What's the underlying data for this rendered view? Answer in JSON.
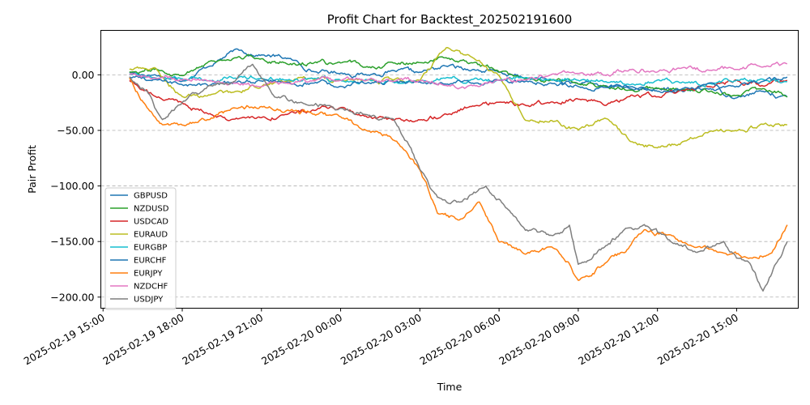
{
  "chart_data": {
    "type": "line",
    "title": "Profit Chart for Backtest_202502191600",
    "xlabel": "Time",
    "ylabel": "Pair Profit",
    "x_range": [
      "2025-02-19 14:55",
      "2025-02-20 17:20"
    ],
    "ylim": [
      -210,
      40
    ],
    "grid": "y-dashed",
    "legend_position": "lower-left",
    "x_ticks": [
      "2025-02-19 15:00",
      "2025-02-19 18:00",
      "2025-02-19 21:00",
      "2025-02-20 00:00",
      "2025-02-20 03:00",
      "2025-02-20 06:00",
      "2025-02-20 09:00",
      "2025-02-20 12:00",
      "2025-02-20 15:00"
    ],
    "y_ticks": [
      0,
      -50,
      -100,
      -150,
      -200
    ],
    "y_tick_labels": [
      "0.00",
      "−50.00",
      "−100.00",
      "−150.00",
      "−200.00"
    ],
    "series": [
      {
        "name": "GBPUSD",
        "color": "#1f77b4",
        "x": [
          "2025-02-19 16:00",
          "2025-02-19 17:00",
          "2025-02-19 18:00",
          "2025-02-19 19:00",
          "2025-02-19 20:00",
          "2025-02-19 21:00",
          "2025-02-19 22:00",
          "2025-02-19 23:00",
          "2025-02-20 00:00",
          "2025-02-20 01:00",
          "2025-02-20 02:00",
          "2025-02-20 03:00",
          "2025-02-20 04:00",
          "2025-02-20 05:00",
          "2025-02-20 06:00",
          "2025-02-20 07:00",
          "2025-02-20 08:00",
          "2025-02-20 09:00",
          "2025-02-20 10:00",
          "2025-02-20 11:00",
          "2025-02-20 12:00",
          "2025-02-20 13:00",
          "2025-02-20 14:00",
          "2025-02-20 15:00",
          "2025-02-20 16:00",
          "2025-02-20 16:55"
        ],
        "y": [
          2,
          0,
          -5,
          8,
          22,
          18,
          15,
          3,
          2,
          0,
          3,
          2,
          8,
          5,
          2,
          -3,
          -5,
          -8,
          -10,
          -12,
          -13,
          -15,
          -12,
          -20,
          -15,
          -20
        ]
      },
      {
        "name": "NZDUSD",
        "color": "#2ca02c",
        "x": [
          "2025-02-19 16:00",
          "2025-02-19 17:00",
          "2025-02-19 18:00",
          "2025-02-19 19:00",
          "2025-02-19 20:00",
          "2025-02-19 21:00",
          "2025-02-19 22:00",
          "2025-02-19 23:00",
          "2025-02-20 00:00",
          "2025-02-20 01:00",
          "2025-02-20 02:00",
          "2025-02-20 03:00",
          "2025-02-20 04:00",
          "2025-02-20 05:00",
          "2025-02-20 06:00",
          "2025-02-20 07:00",
          "2025-02-20 08:00",
          "2025-02-20 09:00",
          "2025-02-20 10:00",
          "2025-02-20 11:00",
          "2025-02-20 12:00",
          "2025-02-20 13:00",
          "2025-02-20 14:00",
          "2025-02-20 15:00",
          "2025-02-20 16:00",
          "2025-02-20 16:55"
        ],
        "y": [
          3,
          5,
          0,
          12,
          15,
          15,
          10,
          11,
          10,
          8,
          10,
          12,
          15,
          10,
          2,
          -3,
          -5,
          -8,
          -10,
          -12,
          -12,
          -14,
          -15,
          -18,
          -12,
          -20
        ]
      },
      {
        "name": "USDCAD",
        "color": "#d62728",
        "x": [
          "2025-02-19 16:00",
          "2025-02-19 17:00",
          "2025-02-19 18:00",
          "2025-02-19 19:00",
          "2025-02-19 20:00",
          "2025-02-19 21:00",
          "2025-02-19 22:00",
          "2025-02-19 23:00",
          "2025-02-20 00:00",
          "2025-02-20 01:00",
          "2025-02-20 02:00",
          "2025-02-20 03:00",
          "2025-02-20 04:00",
          "2025-02-20 05:00",
          "2025-02-20 06:00",
          "2025-02-20 07:00",
          "2025-02-20 08:00",
          "2025-02-20 09:00",
          "2025-02-20 10:00",
          "2025-02-20 11:00",
          "2025-02-20 12:00",
          "2025-02-20 13:00",
          "2025-02-20 14:00",
          "2025-02-20 15:00",
          "2025-02-20 16:00",
          "2025-02-20 16:55"
        ],
        "y": [
          -5,
          -20,
          -25,
          -35,
          -40,
          -38,
          -35,
          -32,
          -30,
          -38,
          -42,
          -40,
          -35,
          -28,
          -25,
          -28,
          -25,
          -22,
          -28,
          -18,
          -20,
          -15,
          -10,
          -5,
          -10,
          -5
        ]
      },
      {
        "name": "EURAUD",
        "color": "#bcbd22",
        "x": [
          "2025-02-19 16:00",
          "2025-02-19 17:00",
          "2025-02-19 18:00",
          "2025-02-19 19:00",
          "2025-02-19 20:00",
          "2025-02-19 21:00",
          "2025-02-19 22:00",
          "2025-02-19 23:00",
          "2025-02-20 00:00",
          "2025-02-20 01:00",
          "2025-02-20 02:00",
          "2025-02-20 03:00",
          "2025-02-20 04:00",
          "2025-02-20 05:00",
          "2025-02-20 06:00",
          "2025-02-20 07:00",
          "2025-02-20 08:00",
          "2025-02-20 09:00",
          "2025-02-20 10:00",
          "2025-02-20 11:00",
          "2025-02-20 12:00",
          "2025-02-20 13:00",
          "2025-02-20 14:00",
          "2025-02-20 15:00",
          "2025-02-20 16:00",
          "2025-02-20 16:55"
        ],
        "y": [
          5,
          5,
          -20,
          -18,
          -15,
          -10,
          -5,
          -5,
          -5,
          -5,
          -5,
          -5,
          25,
          15,
          0,
          -40,
          -40,
          -50,
          -40,
          -60,
          -65,
          -60,
          -50,
          -50,
          -45,
          -45
        ]
      },
      {
        "name": "EURGBP",
        "color": "#17becf",
        "x": [
          "2025-02-19 16:00",
          "2025-02-19 17:00",
          "2025-02-19 18:00",
          "2025-02-19 19:00",
          "2025-02-19 20:00",
          "2025-02-19 21:00",
          "2025-02-19 22:00",
          "2025-02-19 23:00",
          "2025-02-20 00:00",
          "2025-02-20 01:00",
          "2025-02-20 02:00",
          "2025-02-20 03:00",
          "2025-02-20 04:00",
          "2025-02-20 05:00",
          "2025-02-20 06:00",
          "2025-02-20 07:00",
          "2025-02-20 08:00",
          "2025-02-20 09:00",
          "2025-02-20 10:00",
          "2025-02-20 11:00",
          "2025-02-20 12:00",
          "2025-02-20 13:00",
          "2025-02-20 14:00",
          "2025-02-20 15:00",
          "2025-02-20 16:00",
          "2025-02-20 16:55"
        ],
        "y": [
          0,
          -2,
          -3,
          -5,
          -3,
          -2,
          -4,
          -3,
          -5,
          -4,
          -6,
          -5,
          -3,
          -4,
          -5,
          -3,
          -5,
          -4,
          -6,
          -8,
          -5,
          -6,
          -8,
          -5,
          -4,
          -6
        ]
      },
      {
        "name": "EURCHF",
        "color": "#1f77b4",
        "x": [
          "2025-02-19 16:00",
          "2025-02-19 17:00",
          "2025-02-19 18:00",
          "2025-02-19 19:00",
          "2025-02-19 20:00",
          "2025-02-19 21:00",
          "2025-02-19 22:00",
          "2025-02-19 23:00",
          "2025-02-20 00:00",
          "2025-02-20 01:00",
          "2025-02-20 02:00",
          "2025-02-20 03:00",
          "2025-02-20 04:00",
          "2025-02-20 05:00",
          "2025-02-20 06:00",
          "2025-02-20 07:00",
          "2025-02-20 08:00",
          "2025-02-20 09:00",
          "2025-02-20 10:00",
          "2025-02-20 11:00",
          "2025-02-20 12:00",
          "2025-02-20 13:00",
          "2025-02-20 14:00",
          "2025-02-20 15:00",
          "2025-02-20 16:00",
          "2025-02-20 16:55"
        ],
        "y": [
          -2,
          -5,
          -8,
          -10,
          -8,
          -5,
          -6,
          -8,
          -10,
          -8,
          -7,
          -6,
          -8,
          -7,
          -5,
          -6,
          -8,
          -10,
          -12,
          -10,
          -15,
          -12,
          -8,
          -10,
          -5,
          -2
        ]
      },
      {
        "name": "EURJPY",
        "color": "#ff7f0e",
        "x": [
          "2025-02-19 16:00",
          "2025-02-19 16:40",
          "2025-02-19 17:15",
          "2025-02-19 18:00",
          "2025-02-19 19:00",
          "2025-02-19 20:00",
          "2025-02-19 21:00",
          "2025-02-19 22:00",
          "2025-02-19 23:00",
          "2025-02-20 00:00",
          "2025-02-20 01:00",
          "2025-02-20 01:50",
          "2025-02-20 02:30",
          "2025-02-20 03:00",
          "2025-02-20 03:40",
          "2025-02-20 04:30",
          "2025-02-20 05:15",
          "2025-02-20 06:00",
          "2025-02-20 07:00",
          "2025-02-20 08:00",
          "2025-02-20 08:40",
          "2025-02-20 09:00",
          "2025-02-20 10:00",
          "2025-02-20 10:45",
          "2025-02-20 11:30",
          "2025-02-20 12:30",
          "2025-02-20 13:30",
          "2025-02-20 14:30",
          "2025-02-20 15:30",
          "2025-02-20 16:20",
          "2025-02-20 16:55"
        ],
        "y": [
          -3,
          -30,
          -45,
          -45,
          -40,
          -30,
          -28,
          -32,
          -35,
          -38,
          -50,
          -55,
          -70,
          -85,
          -125,
          -130,
          -115,
          -150,
          -160,
          -155,
          -170,
          -185,
          -170,
          -160,
          -140,
          -145,
          -155,
          -160,
          -165,
          -160,
          -135
        ]
      },
      {
        "name": "NZDCHF",
        "color": "#e377c2",
        "x": [
          "2025-02-19 16:00",
          "2025-02-19 17:00",
          "2025-02-19 18:00",
          "2025-02-19 19:00",
          "2025-02-19 20:00",
          "2025-02-19 21:00",
          "2025-02-19 22:00",
          "2025-02-19 23:00",
          "2025-02-20 00:00",
          "2025-02-20 01:00",
          "2025-02-20 02:00",
          "2025-02-20 03:00",
          "2025-02-20 04:00",
          "2025-02-20 05:00",
          "2025-02-20 06:00",
          "2025-02-20 07:00",
          "2025-02-20 08:00",
          "2025-02-20 09:00",
          "2025-02-20 10:00",
          "2025-02-20 11:00",
          "2025-02-20 12:00",
          "2025-02-20 13:00",
          "2025-02-20 14:00",
          "2025-02-20 15:00",
          "2025-02-20 16:00",
          "2025-02-20 16:55"
        ],
        "y": [
          0,
          -3,
          -5,
          -5,
          -8,
          -10,
          -8,
          -6,
          -5,
          -5,
          -7,
          -5,
          -8,
          -10,
          -5,
          -3,
          0,
          2,
          0,
          5,
          3,
          7,
          5,
          5,
          8,
          10
        ]
      },
      {
        "name": "USDJPY",
        "color": "#7f7f7f",
        "x": [
          "2025-02-19 16:00",
          "2025-02-19 16:40",
          "2025-02-19 17:15",
          "2025-02-19 18:00",
          "2025-02-19 19:00",
          "2025-02-19 20:00",
          "2025-02-19 20:40",
          "2025-02-19 21:30",
          "2025-02-19 22:30",
          "2025-02-19 23:30",
          "2025-02-20 00:00",
          "2025-02-20 01:00",
          "2025-02-20 02:00",
          "2025-02-20 02:40",
          "2025-02-20 03:00",
          "2025-02-20 03:40",
          "2025-02-20 04:30",
          "2025-02-20 05:30",
          "2025-02-20 06:15",
          "2025-02-20 07:00",
          "2025-02-20 08:00",
          "2025-02-20 08:40",
          "2025-02-20 09:00",
          "2025-02-20 10:00",
          "2025-02-20 10:45",
          "2025-02-20 11:30",
          "2025-02-20 12:30",
          "2025-02-20 13:30",
          "2025-02-20 14:30",
          "2025-02-20 15:00",
          "2025-02-20 15:30",
          "2025-02-20 16:00",
          "2025-02-20 16:55"
        ],
        "y": [
          -2,
          -15,
          -40,
          -25,
          -10,
          -5,
          10,
          -20,
          -25,
          -28,
          -30,
          -35,
          -40,
          -65,
          -85,
          -110,
          -115,
          -100,
          -120,
          -140,
          -145,
          -135,
          -170,
          -155,
          -140,
          -135,
          -150,
          -160,
          -150,
          -165,
          -170,
          -195,
          -150
        ]
      }
    ]
  }
}
